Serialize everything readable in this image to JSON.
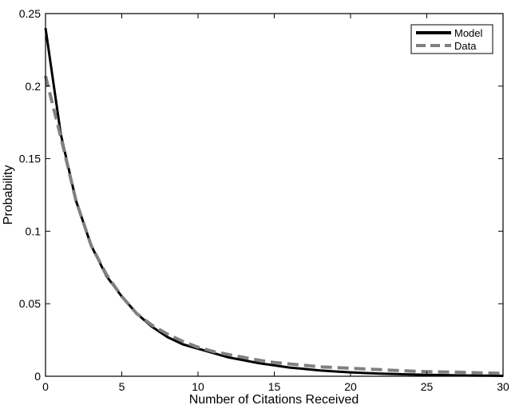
{
  "chart_data": {
    "type": "line",
    "xlabel": "Number of Citations Received",
    "ylabel": "Probability",
    "xlim": [
      0,
      30
    ],
    "ylim": [
      0,
      0.25
    ],
    "xticks": [
      0,
      5,
      10,
      15,
      20,
      25,
      30
    ],
    "xtick_labels": [
      "0",
      "5",
      "10",
      "15",
      "20",
      "25",
      "30"
    ],
    "yticks": [
      0,
      0.05,
      0.1,
      0.15,
      0.2,
      0.25
    ],
    "ytick_labels": [
      "0",
      "0.05",
      "0.1",
      "0.15",
      "0.2",
      "0.25"
    ],
    "grid": false,
    "legend_position": "top-right",
    "series": [
      {
        "name": "Model",
        "color": "#000000",
        "style": "solid",
        "x": [
          0,
          1,
          2,
          3,
          4,
          5,
          6,
          7,
          8,
          9,
          10,
          11,
          12,
          13,
          14,
          15,
          16,
          17,
          18,
          19,
          20,
          21,
          22,
          23,
          24,
          25,
          26,
          27,
          28,
          29,
          30
        ],
        "values": [
          0.24,
          0.167,
          0.121,
          0.09,
          0.069,
          0.055,
          0.043,
          0.034,
          0.027,
          0.022,
          0.019,
          0.016,
          0.013,
          0.011,
          0.009,
          0.0075,
          0.006,
          0.005,
          0.004,
          0.0033,
          0.0027,
          0.0022,
          0.0018,
          0.0015,
          0.0012,
          0.001,
          0.0008,
          0.0006,
          0.0005,
          0.0004,
          0.0003
        ]
      },
      {
        "name": "Data",
        "color": "#808080",
        "style": "dashed",
        "x": [
          0,
          1,
          2,
          3,
          4,
          5,
          6,
          7,
          8,
          9,
          10,
          11,
          12,
          13,
          14,
          15,
          16,
          17,
          18,
          19,
          20,
          21,
          22,
          23,
          24,
          25,
          26,
          27,
          28,
          29,
          30
        ],
        "values": [
          0.207,
          0.165,
          0.121,
          0.09,
          0.07,
          0.055,
          0.043,
          0.035,
          0.029,
          0.024,
          0.02,
          0.017,
          0.015,
          0.013,
          0.011,
          0.0095,
          0.0085,
          0.0075,
          0.0065,
          0.006,
          0.0055,
          0.005,
          0.0045,
          0.004,
          0.0035,
          0.0032,
          0.003,
          0.0028,
          0.0025,
          0.0022,
          0.002
        ]
      }
    ]
  }
}
